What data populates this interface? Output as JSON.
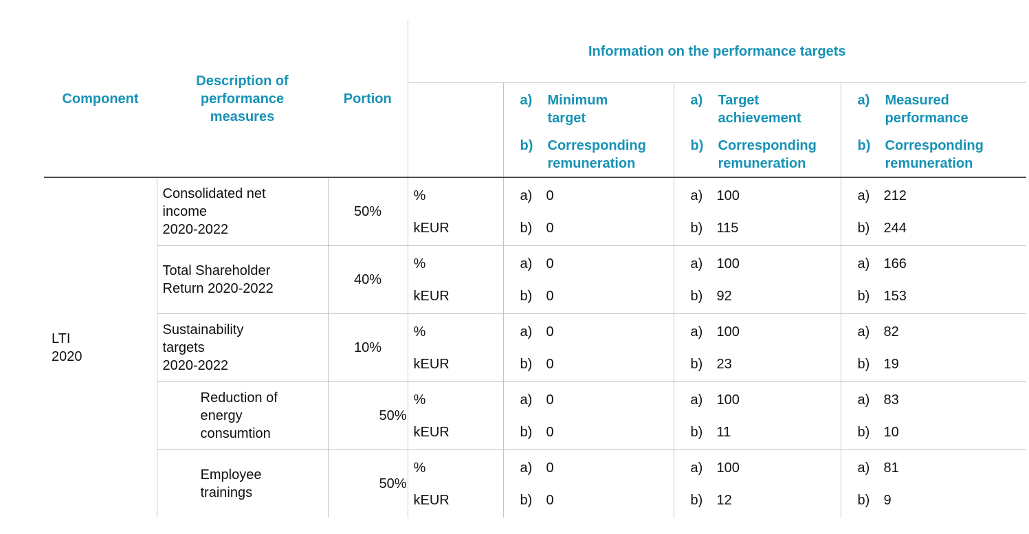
{
  "theme": {
    "accent": "#1792b5",
    "grid_line": "#c5c5c5",
    "header_rule": "#4d4d4d",
    "text_color": "#111111"
  },
  "header": {
    "component": "Component",
    "description": "Description of\nperformance\nmeasures",
    "portion": "Portion",
    "info_title": "Information on the performance targets",
    "marker_a": "a)",
    "marker_b": "b)",
    "subcolumns": [
      {
        "a_label": "Minimum\ntarget",
        "b_label": "Corresponding\nremuneration"
      },
      {
        "a_label": "Target\nachievement",
        "b_label": "Corresponding\nremuneration"
      },
      {
        "a_label": "Measured\nperformance",
        "b_label": "Corresponding\nremuneration"
      }
    ]
  },
  "component_group": {
    "label": "LTI\n2020"
  },
  "rows": [
    {
      "description": "Consolidated net\nincome\n2020-2022",
      "portion": "50%",
      "units": [
        "%",
        "kEUR"
      ],
      "min": {
        "a": "0",
        "b": "0"
      },
      "target": {
        "a": "100",
        "b": "115"
      },
      "measured": {
        "a": "212",
        "b": "244"
      }
    },
    {
      "description": "Total Shareholder\nReturn 2020-2022",
      "portion": "40%",
      "units": [
        "%",
        "kEUR"
      ],
      "min": {
        "a": "0",
        "b": "0"
      },
      "target": {
        "a": "100",
        "b": "92"
      },
      "measured": {
        "a": "166",
        "b": "153"
      }
    },
    {
      "description": "Sustainability\ntargets\n2020-2022",
      "portion": "10%",
      "units": [
        "%",
        "kEUR"
      ],
      "min": {
        "a": "0",
        "b": "0"
      },
      "target": {
        "a": "100",
        "b": "23"
      },
      "measured": {
        "a": "82",
        "b": "19"
      }
    },
    {
      "description": "Reduction of\nenergy\nconsumtion",
      "portion": "50%",
      "units": [
        "%",
        "kEUR"
      ],
      "min": {
        "a": "0",
        "b": "0"
      },
      "target": {
        "a": "100",
        "b": "11"
      },
      "measured": {
        "a": "83",
        "b": "10"
      }
    },
    {
      "description": "Employee\ntrainings",
      "portion": "50%",
      "units": [
        "%",
        "kEUR"
      ],
      "min": {
        "a": "0",
        "b": "0"
      },
      "target": {
        "a": "100",
        "b": "12"
      },
      "measured": {
        "a": "81",
        "b": "9"
      }
    }
  ]
}
